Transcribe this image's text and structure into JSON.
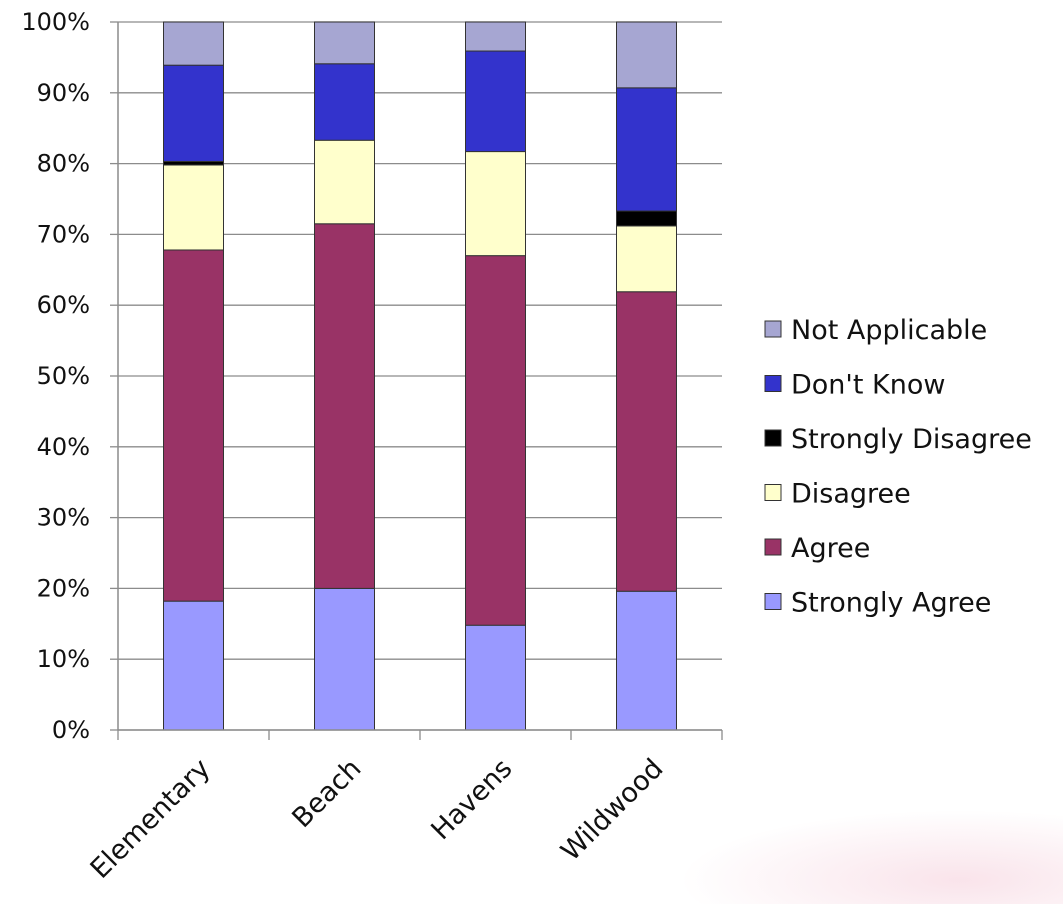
{
  "chart_data": {
    "type": "bar",
    "stacked": true,
    "percent_stacked": true,
    "categories": [
      "Elementary",
      "Beach",
      "Havens",
      "Wildwood"
    ],
    "series": [
      {
        "name": "Strongly Agree",
        "color": "#9999ff",
        "values": [
          18.2,
          20.0,
          14.8,
          19.6
        ]
      },
      {
        "name": "Agree",
        "color": "#993366",
        "values": [
          49.6,
          51.5,
          52.2,
          42.3
        ]
      },
      {
        "name": "Disagree",
        "color": "#ffffcc",
        "values": [
          12.0,
          11.8,
          14.7,
          9.3
        ]
      },
      {
        "name": "Strongly Disagree",
        "color": "#000000",
        "values": [
          0.5,
          0.0,
          0.0,
          2.1
        ]
      },
      {
        "name": "Don't Know",
        "color": "#3333cc",
        "values": [
          13.6,
          10.8,
          14.2,
          17.4
        ]
      },
      {
        "name": "Not Applicable",
        "color": "#a6a6d2",
        "values": [
          6.1,
          5.9,
          4.1,
          9.3
        ]
      }
    ],
    "y_ticks": [
      "0%",
      "10%",
      "20%",
      "30%",
      "40%",
      "50%",
      "60%",
      "70%",
      "80%",
      "90%",
      "100%"
    ],
    "ylim": [
      0,
      100
    ],
    "grid": true,
    "legend_position": "right",
    "legend_order": [
      "Not Applicable",
      "Don't Know",
      "Strongly Disagree",
      "Disagree",
      "Agree",
      "Strongly Agree"
    ]
  }
}
